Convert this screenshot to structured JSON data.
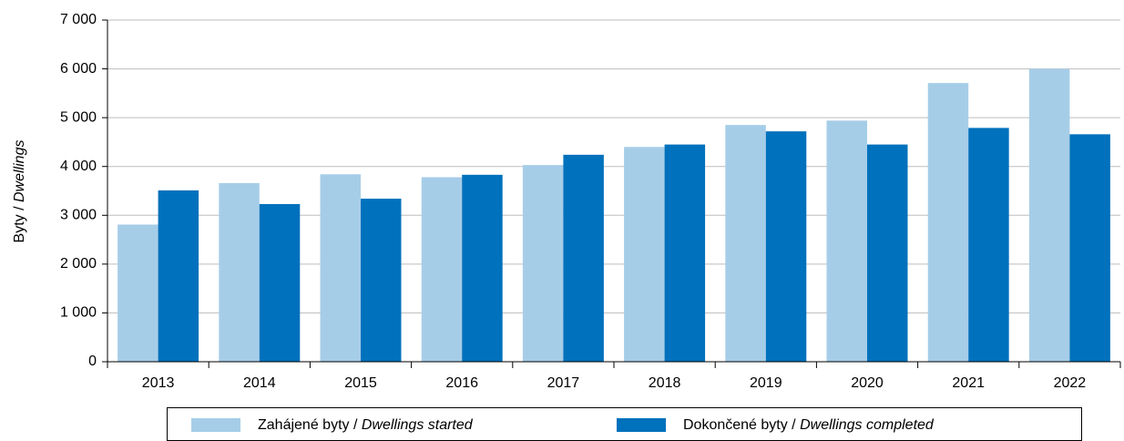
{
  "chart_data": {
    "type": "bar",
    "ylabel": "Byty / Dwellings",
    "categories": [
      "2013",
      "2014",
      "2015",
      "2016",
      "2017",
      "2018",
      "2019",
      "2020",
      "2021",
      "2022"
    ],
    "series": [
      {
        "name": "Zahájené byty / Dwellings started",
        "color": "#a6cde8",
        "values": [
          2810,
          3660,
          3840,
          3780,
          4030,
          4400,
          4850,
          4940,
          5710,
          6000
        ]
      },
      {
        "name": "Dokončené byty / Dwellings completed",
        "color": "#0071bc",
        "values": [
          3510,
          3230,
          3340,
          3830,
          4240,
          4450,
          4720,
          4450,
          4790,
          4660
        ]
      }
    ],
    "ylim": [
      0,
      7000
    ],
    "yticks": [
      0,
      {
        "value": 1000,
        "label": "1 000"
      },
      {
        "value": 2000,
        "label": "2 000"
      },
      {
        "value": 3000,
        "label": "3 000"
      },
      {
        "value": 4000,
        "label": "4 000"
      },
      {
        "value": 5000,
        "label": "5 000"
      },
      {
        "value": 6000,
        "label": "6 000"
      },
      {
        "value": 7000,
        "label": "7 000"
      }
    ],
    "grid": true,
    "legend": "bottom"
  }
}
